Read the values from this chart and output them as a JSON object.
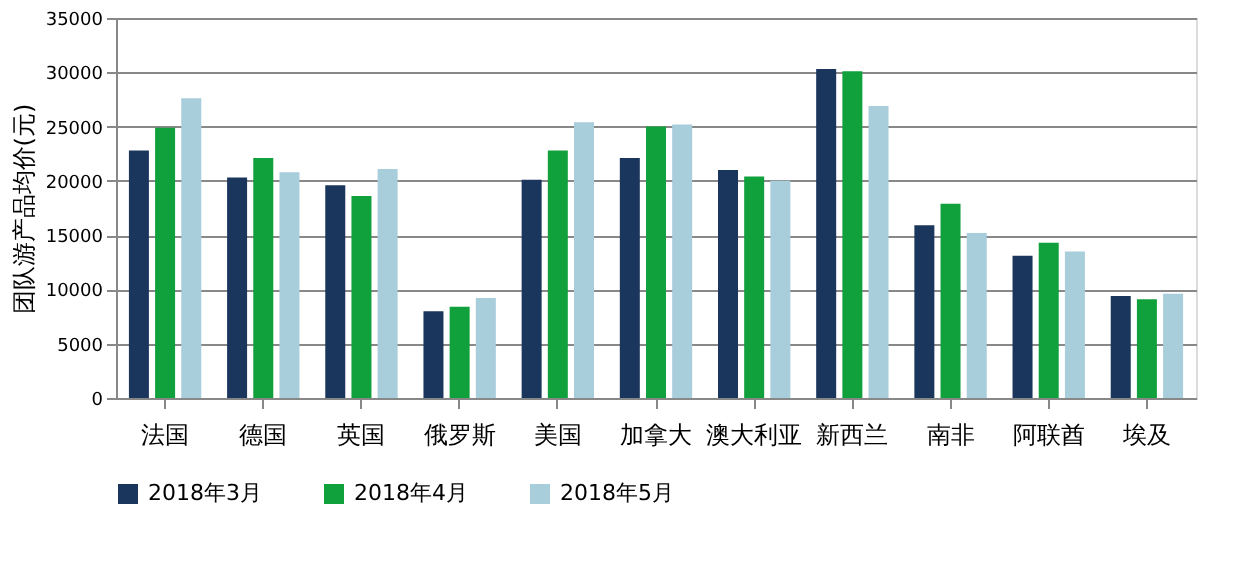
{
  "chart_data": {
    "type": "bar",
    "ylabel": "团队游产品均价(元)",
    "categories": [
      "法国",
      "德国",
      "英国",
      "俄罗斯",
      "美国",
      "加拿大",
      "澳大利亚",
      "新西兰",
      "南非",
      "阿联酋",
      "埃及"
    ],
    "series": [
      {
        "name": "2018年3月",
        "color": "#1b365d",
        "values": [
          22800,
          20300,
          19600,
          8000,
          20100,
          22100,
          21000,
          30300,
          15900,
          13100,
          9400
        ]
      },
      {
        "name": "2018年4月",
        "color": "#10a03c",
        "values": [
          24900,
          22100,
          18600,
          8400,
          22800,
          25000,
          20400,
          30100,
          17900,
          14300,
          9100
        ]
      },
      {
        "name": "2018年5月",
        "color": "#a8cddb",
        "values": [
          27600,
          20800,
          21100,
          9200,
          25400,
          25200,
          20000,
          26900,
          15200,
          13500,
          9600
        ]
      }
    ],
    "ylim": [
      0,
      35000
    ],
    "yticks": [
      0,
      5000,
      10000,
      15000,
      20000,
      25000,
      30000,
      35000
    ],
    "grid": "y",
    "legend": "bottom"
  }
}
